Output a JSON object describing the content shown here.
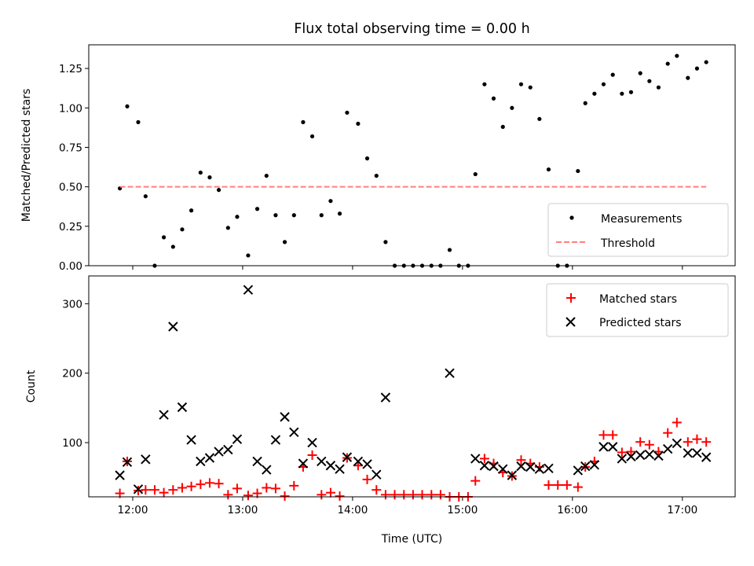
{
  "figure": {
    "title": "Flux total observing time = 0.00 h",
    "xlabel": "Time (UTC)"
  },
  "chart_data": [
    {
      "type": "scatter",
      "panel": "top",
      "title": "Flux total observing time = 0.00 h",
      "ylabel": "Matched/Predicted stars",
      "xlabel": "",
      "x_unit": "hours UTC",
      "xlim": [
        11.6,
        17.48
      ],
      "ylim": [
        0.0,
        1.4
      ],
      "yticks": [
        0.0,
        0.25,
        0.5,
        0.75,
        1.0,
        1.25
      ],
      "ytick_labels": [
        "0.00",
        "0.25",
        "0.50",
        "0.75",
        "1.00",
        "1.25"
      ],
      "xticks": [
        12,
        13,
        14,
        15,
        16,
        17
      ],
      "grid": false,
      "legend_position": "lower-right",
      "series": [
        {
          "name": "Measurements",
          "kind": "points",
          "color": "#000000",
          "x": [
            11.883,
            11.95,
            12.05,
            12.117,
            12.2,
            12.283,
            12.367,
            12.45,
            12.533,
            12.617,
            12.7,
            12.783,
            12.867,
            12.95,
            13.05,
            13.133,
            13.217,
            13.3,
            13.383,
            13.467,
            13.55,
            13.633,
            13.717,
            13.8,
            13.883,
            13.95,
            14.05,
            14.133,
            14.217,
            14.3,
            14.383,
            14.467,
            14.55,
            14.633,
            14.717,
            14.8,
            14.883,
            14.967,
            15.05,
            15.117,
            15.2,
            15.283,
            15.367,
            15.45,
            15.533,
            15.617,
            15.7,
            15.783,
            15.867,
            15.95,
            16.05,
            16.117,
            16.2,
            16.283,
            16.367,
            16.45,
            16.533,
            16.617,
            16.7,
            16.783,
            16.867,
            16.95,
            17.05,
            17.133,
            17.217
          ],
          "y": [
            0.49,
            1.01,
            0.91,
            0.44,
            0.0,
            0.18,
            0.12,
            0.23,
            0.35,
            0.59,
            0.56,
            0.48,
            0.24,
            0.31,
            0.065,
            0.36,
            0.57,
            0.32,
            0.15,
            0.32,
            0.91,
            0.82,
            0.32,
            0.41,
            0.33,
            0.97,
            0.9,
            0.68,
            0.57,
            0.15,
            0.0,
            0.0,
            0.0,
            0.0,
            0.0,
            0.0,
            0.1,
            0.0,
            0.0,
            0.58,
            1.15,
            1.06,
            0.88,
            1.0,
            1.15,
            1.13,
            0.93,
            0.61,
            0.0,
            0.0,
            0.6,
            1.03,
            1.09,
            1.15,
            1.21,
            1.09,
            1.1,
            1.22,
            1.17,
            1.13,
            1.28,
            1.33,
            1.19,
            1.25,
            1.29
          ]
        },
        {
          "name": "Threshold",
          "kind": "dashed-line",
          "color": "#ff7f7f",
          "x": [
            11.883,
            17.217
          ],
          "y": [
            0.5,
            0.5
          ]
        }
      ]
    },
    {
      "type": "scatter",
      "panel": "bottom",
      "ylabel": "Count",
      "xlabel": "Time (UTC)",
      "x_unit": "hours UTC",
      "xlim": [
        11.6,
        17.48
      ],
      "ylim": [
        22,
        340
      ],
      "yticks": [
        100,
        200,
        300
      ],
      "ytick_labels": [
        "100",
        "200",
        "300"
      ],
      "xticks": [
        12,
        13,
        14,
        15,
        16,
        17
      ],
      "xtick_labels": [
        "12:00",
        "13:00",
        "14:00",
        "15:00",
        "16:00",
        "17:00"
      ],
      "grid": false,
      "legend_position": "upper-right",
      "series": [
        {
          "name": "Matched stars",
          "marker": "plus",
          "color": "#ff0000",
          "x": [
            11.883,
            11.95,
            12.05,
            12.117,
            12.2,
            12.283,
            12.367,
            12.45,
            12.533,
            12.617,
            12.7,
            12.783,
            12.867,
            12.95,
            13.05,
            13.133,
            13.217,
            13.3,
            13.383,
            13.467,
            13.55,
            13.633,
            13.717,
            13.8,
            13.883,
            13.95,
            14.05,
            14.133,
            14.217,
            14.3,
            14.383,
            14.467,
            14.55,
            14.633,
            14.717,
            14.8,
            14.883,
            14.967,
            15.05,
            15.117,
            15.2,
            15.283,
            15.367,
            15.45,
            15.533,
            15.617,
            15.7,
            15.783,
            15.867,
            15.95,
            16.05,
            16.117,
            16.2,
            16.283,
            16.367,
            16.45,
            16.533,
            16.617,
            16.7,
            16.783,
            16.867,
            16.95,
            17.05,
            17.133,
            17.217
          ],
          "y": [
            27,
            73,
            31,
            32,
            32,
            28,
            32,
            35,
            37,
            40,
            42,
            41,
            25,
            34,
            24,
            27,
            35,
            34,
            23,
            38,
            65,
            82,
            25,
            28,
            23,
            78,
            67,
            47,
            32,
            25,
            25,
            25,
            25,
            25,
            25,
            25,
            22,
            22,
            22,
            45,
            77,
            70,
            57,
            52,
            75,
            70,
            65,
            39,
            39,
            39,
            36,
            65,
            73,
            111,
            111,
            86,
            87,
            101,
            97,
            87,
            114,
            129,
            101,
            105,
            101
          ]
        },
        {
          "name": "Predicted stars",
          "marker": "x",
          "color": "#000000",
          "x": [
            11.883,
            11.95,
            12.05,
            12.117,
            12.283,
            12.367,
            12.45,
            12.533,
            12.617,
            12.7,
            12.783,
            12.867,
            12.95,
            13.05,
            13.133,
            13.217,
            13.3,
            13.383,
            13.467,
            13.55,
            13.633,
            13.717,
            13.8,
            13.883,
            13.95,
            14.05,
            14.133,
            14.217,
            14.3,
            14.883,
            15.117,
            15.2,
            15.283,
            15.367,
            15.45,
            15.533,
            15.617,
            15.7,
            15.783,
            16.05,
            16.117,
            16.2,
            16.283,
            16.367,
            16.45,
            16.533,
            16.617,
            16.7,
            16.783,
            16.867,
            16.95,
            17.05,
            17.133,
            17.217
          ],
          "y": [
            53,
            72,
            33,
            76,
            140,
            267,
            151,
            104,
            73,
            78,
            87,
            90,
            105,
            320,
            73,
            61,
            104,
            137,
            115,
            70,
            100,
            73,
            67,
            62,
            79,
            73,
            69,
            54,
            165,
            200,
            77,
            67,
            66,
            62,
            53,
            66,
            65,
            62,
            63,
            60,
            66,
            68,
            94,
            94,
            77,
            80,
            82,
            83,
            81,
            91,
            99,
            85,
            85,
            79
          ]
        }
      ]
    }
  ]
}
